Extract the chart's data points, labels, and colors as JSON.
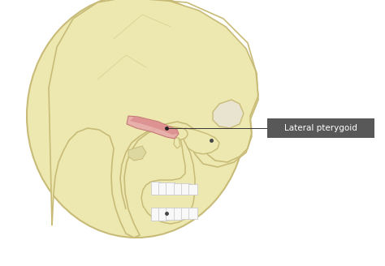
{
  "bg_color": "#ffffff",
  "skull_fill": "#ede8b0",
  "skull_fill2": "#e8e2a8",
  "skull_edge": "#c8bb78",
  "skull_edge2": "#b8ab68",
  "muscle_fill": "#d98888",
  "muscle_fill2": "#e8aaaa",
  "muscle_edge": "#c07070",
  "label_box_fill": "#585858",
  "label_text_color": "#ffffff",
  "label_text": "Lateral pterygoid",
  "line_color": "#333333",
  "tooth_fill": "#f8f8f8",
  "tooth_edge": "#cccccc",
  "dot_color": "#222222",
  "figsize": [
    4.74,
    3.28
  ],
  "dpi": 100
}
